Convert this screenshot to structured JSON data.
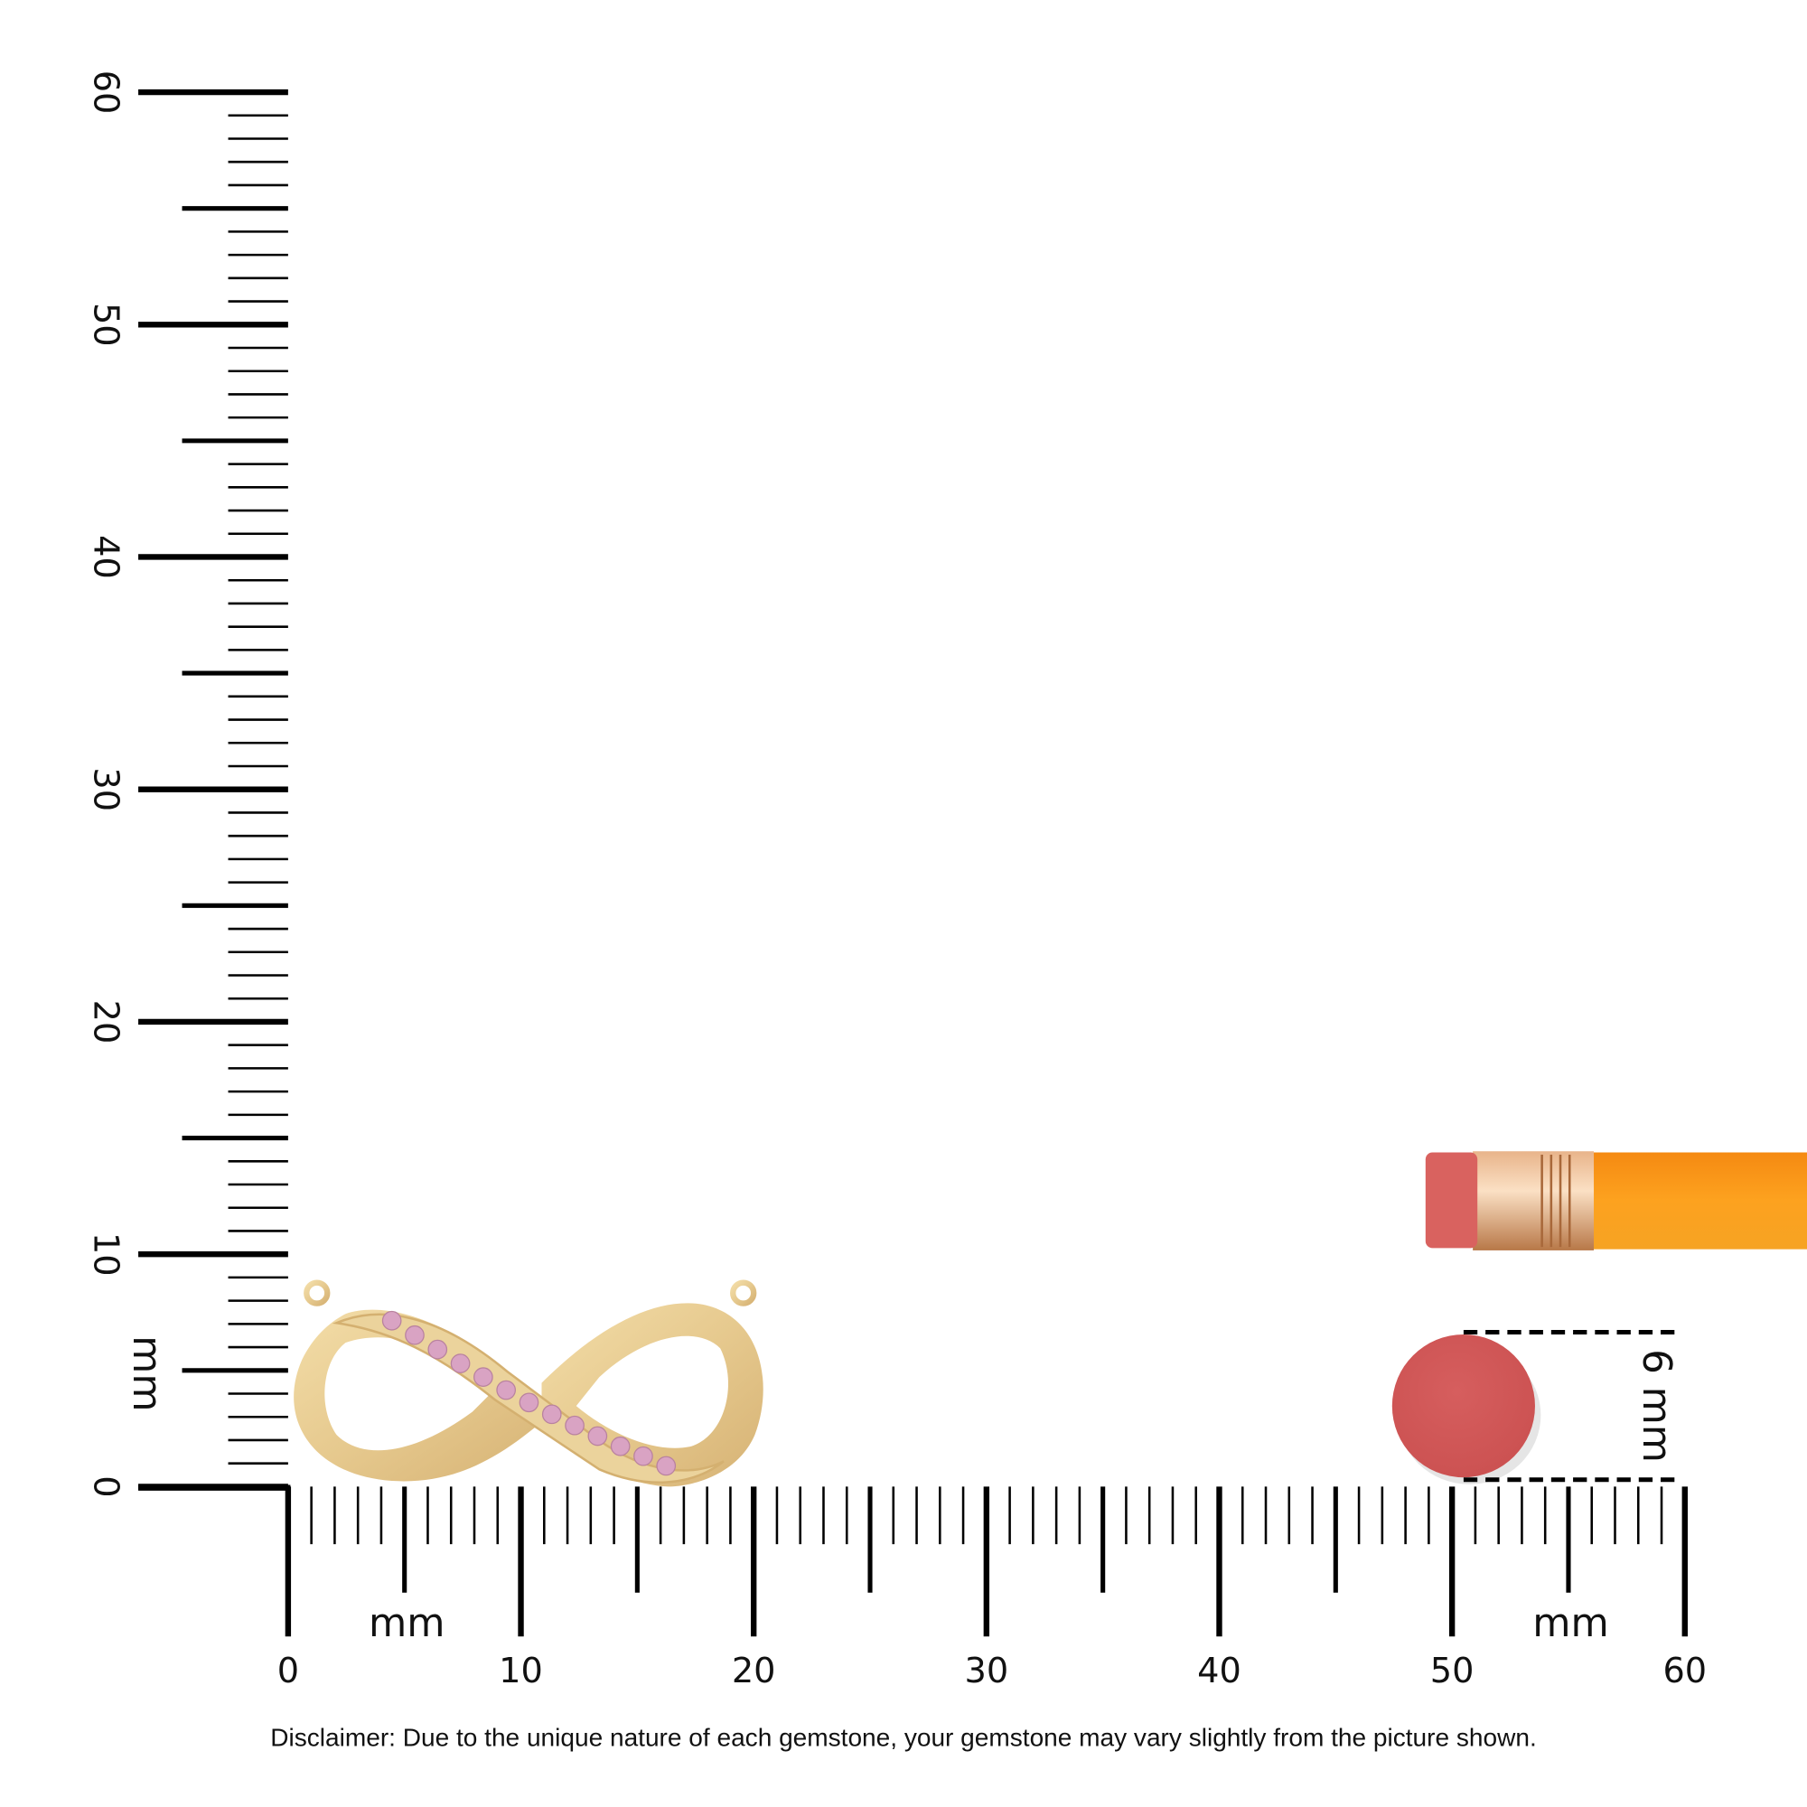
{
  "ruler": {
    "unit": "mm",
    "max_mm": 60,
    "vertical_labels": [
      "0",
      "10",
      "20",
      "30",
      "40",
      "50",
      "60"
    ],
    "horizontal_labels": [
      "0",
      "10",
      "20",
      "30",
      "40",
      "50",
      "60"
    ],
    "vertical_unit_label": "mm",
    "horizontal_unit_label_left": "mm",
    "horizontal_unit_label_right": "mm"
  },
  "product": {
    "item": "infinity-pendant",
    "metal_color": "#E9CF97",
    "gem_color": "#D9A3C3",
    "gem_count": 13
  },
  "reference": {
    "eraser_size_label": "6 mm",
    "eraser_color": "#D35B5B",
    "pencil_color": "#F7941D"
  },
  "disclaimer": "Disclaimer: Due to the unique nature of each gemstone, your gemstone may vary slightly from the picture shown."
}
